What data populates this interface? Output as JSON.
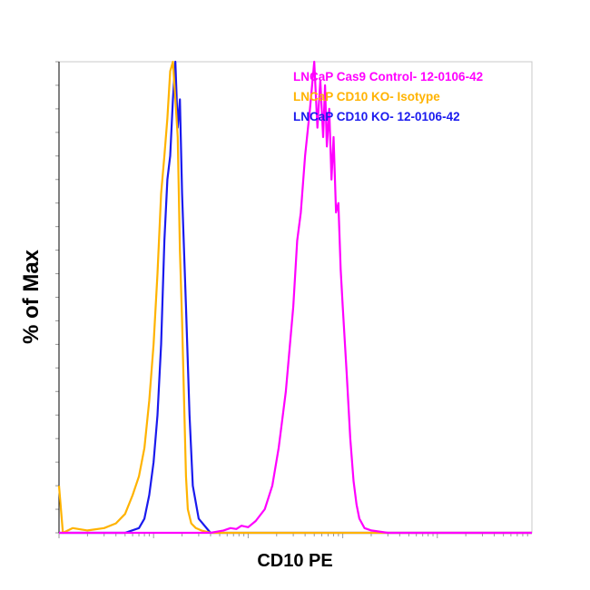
{
  "chart_data": {
    "type": "line",
    "title": "",
    "xlabel": "CD10 PE",
    "ylabel": "% of Max",
    "x_scale": "log",
    "xlim": [
      1,
      100000
    ],
    "ylim": [
      0,
      100
    ],
    "grid": false,
    "legend_position": "top-right",
    "series": [
      {
        "name": "LNCaP Cas9 Control- 12-0106-42",
        "color": "#ff00ff",
        "x": [
          1,
          40,
          55,
          65,
          75,
          85,
          100,
          120,
          150,
          180,
          210,
          250,
          300,
          330,
          360,
          400,
          450,
          500,
          540,
          580,
          620,
          650,
          680,
          720,
          760,
          800,
          850,
          900,
          950,
          1000,
          1100,
          1200,
          1300,
          1400,
          1500,
          1700,
          2000,
          3000,
          100000
        ],
        "y": [
          0,
          0,
          0.5,
          1,
          0.8,
          1.5,
          1.2,
          2.5,
          5,
          10,
          18,
          30,
          48,
          62,
          68,
          80,
          90,
          100,
          86,
          96,
          84,
          95,
          82,
          90,
          75,
          84,
          68,
          70,
          56,
          48,
          34,
          20,
          11,
          6,
          3,
          1,
          0.5,
          0,
          0
        ]
      },
      {
        "name": "LNCaP CD10 KO- Isotype",
        "color": "#ffb300",
        "x": [
          1,
          1.1,
          1.4,
          2,
          3,
          4,
          5,
          6,
          7,
          8,
          9,
          10,
          11,
          12,
          13,
          14,
          15,
          16,
          17,
          18,
          19,
          20,
          21,
          22,
          23,
          25,
          28,
          32,
          40,
          60,
          100000
        ],
        "y": [
          10,
          0,
          1,
          0.5,
          1,
          2,
          4,
          8,
          12,
          18,
          28,
          40,
          55,
          72,
          80,
          88,
          98,
          100,
          92,
          84,
          60,
          45,
          28,
          12,
          5,
          2,
          1,
          0.5,
          0,
          0,
          0
        ]
      },
      {
        "name": "LNCaP CD10 KO- 12-0106-42",
        "color": "#1a1aee",
        "x": [
          1,
          5,
          7,
          8,
          9,
          10,
          11,
          12,
          13,
          14,
          15,
          16,
          17,
          18,
          19,
          20,
          22,
          24,
          26,
          30,
          40,
          100000
        ],
        "y": [
          0,
          0,
          1,
          3,
          8,
          15,
          25,
          40,
          62,
          75,
          80,
          92,
          100,
          86,
          92,
          72,
          48,
          25,
          10,
          3,
          0,
          0
        ]
      }
    ]
  }
}
